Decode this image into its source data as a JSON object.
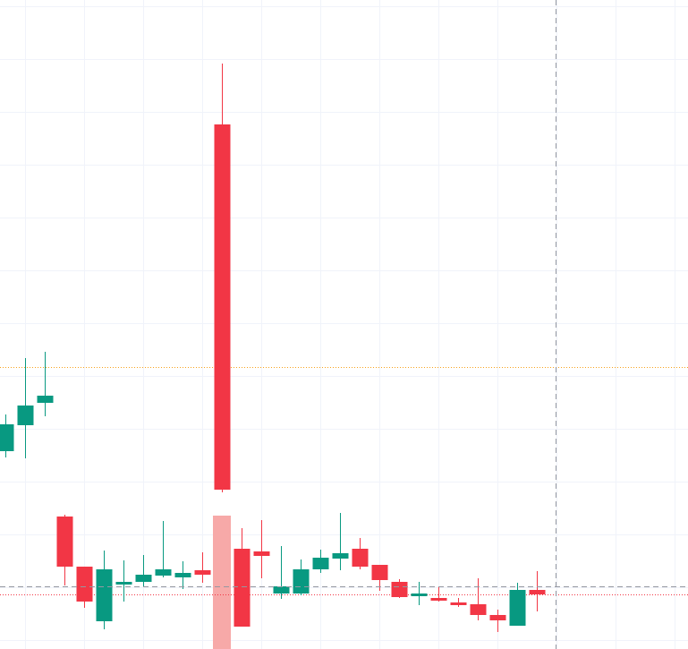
{
  "chart_data": {
    "type": "candlestick",
    "ylim": [
      0,
      725
    ],
    "up_color": "#089981",
    "down_color": "#f23645",
    "open": [
      221,
      250,
      275,
      148,
      92,
      31,
      72,
      75,
      82,
      80,
      88,
      586,
      112,
      109,
      62,
      62,
      89,
      101,
      112,
      94,
      75,
      59,
      57,
      52,
      50,
      38,
      26,
      66
    ],
    "high": [
      262,
      325,
      332,
      150,
      92,
      110,
      99,
      105,
      143,
      98,
      108,
      654,
      135,
      144,
      115,
      100,
      111,
      152,
      124,
      94,
      78,
      75,
      70,
      57,
      79,
      44,
      74,
      87
    ],
    "low": [
      214,
      213,
      260,
      71,
      46,
      22,
      53,
      69,
      80,
      67,
      74,
      175,
      25,
      79,
      56,
      60,
      85,
      88,
      89,
      65,
      57,
      49,
      53,
      47,
      32,
      19,
      26,
      42
    ],
    "close": [
      251,
      272,
      283,
      92,
      53,
      89,
      75,
      83,
      89,
      85,
      83,
      178,
      25,
      104,
      70,
      89,
      102,
      107,
      92,
      77,
      58,
      62,
      54,
      49,
      38,
      32,
      66,
      61
    ],
    "price_lines": [
      {
        "value": 315,
        "color": "#f7a21b"
      },
      {
        "value": 61,
        "color": "#f23645"
      }
    ]
  }
}
